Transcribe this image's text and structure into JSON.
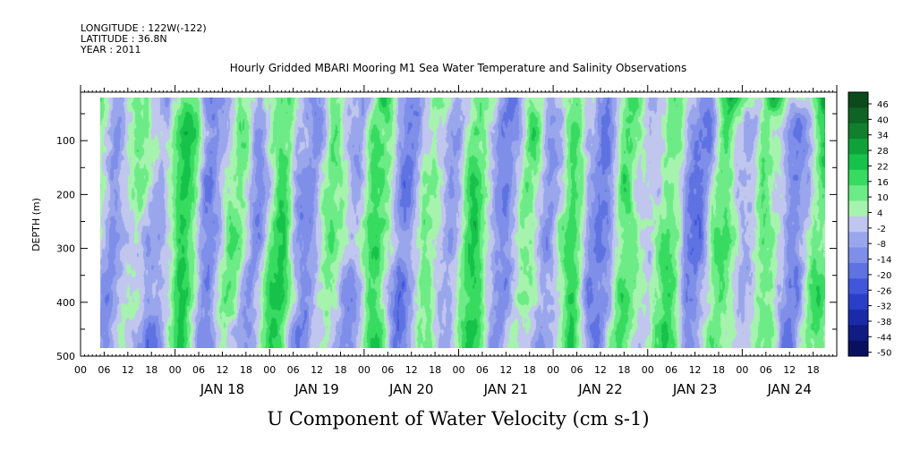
{
  "header": {
    "longitude": "LONGITUDE : 122W(-122)",
    "latitude": "LATITUDE : 36.8N",
    "year": "YEAR : 2011"
  },
  "chart_data": {
    "type": "heatmap",
    "title": "Hourly Gridded MBARI Mooring M1 Sea Water Temperature and Salinity Observations",
    "xlabel": "U Component of Water Velocity (cm s-1)",
    "ylabel": "DEPTH (m)",
    "y_axis": {
      "range": [
        500,
        10
      ],
      "inverted": true,
      "ticks": [
        100,
        200,
        300,
        400,
        500
      ],
      "data_extent": [
        20,
        485
      ]
    },
    "x_axis": {
      "unit": "hour",
      "range_start": "2011-01-17 00:00",
      "range_end": "2011-01-24 23:00",
      "data_start": "2011-01-17 05:00",
      "data_end": "2011-01-24 21:00",
      "hour_tick_labels": [
        "00",
        "06",
        "12",
        "18"
      ],
      "date_labels": [
        "JAN 18",
        "JAN 19",
        "JAN 20",
        "JAN 21",
        "JAN 22",
        "JAN 23",
        "JAN 24"
      ]
    },
    "colorbar": {
      "labels": [
        "46",
        "40",
        "34",
        "28",
        "22",
        "16",
        "10",
        "4",
        "-2",
        "-8",
        "-14",
        "-20",
        "-26",
        "-32",
        "-38",
        "-44",
        "-50"
      ],
      "bands": [
        {
          "from": 43,
          "to": 50,
          "color": "#0b4a1a"
        },
        {
          "from": 37,
          "to": 43,
          "color": "#0e6424"
        },
        {
          "from": 31,
          "to": 37,
          "color": "#10802d"
        },
        {
          "from": 25,
          "to": 31,
          "color": "#0fa23a"
        },
        {
          "from": 19,
          "to": 25,
          "color": "#16c24a"
        },
        {
          "from": 13,
          "to": 19,
          "color": "#37db5f"
        },
        {
          "from": 7,
          "to": 13,
          "color": "#6ceb86"
        },
        {
          "from": 1,
          "to": 7,
          "color": "#a6f3ae"
        },
        {
          "from": -5,
          "to": 1,
          "color": "#c0c6ee"
        },
        {
          "from": -11,
          "to": -5,
          "color": "#9aa6ec"
        },
        {
          "from": -17,
          "to": -11,
          "color": "#7f8ee8"
        },
        {
          "from": -23,
          "to": -17,
          "color": "#5f72e2"
        },
        {
          "from": -29,
          "to": -23,
          "color": "#4256dc"
        },
        {
          "from": -35,
          "to": -29,
          "color": "#2a3fc8"
        },
        {
          "from": -41,
          "to": -35,
          "color": "#1b2aa8"
        },
        {
          "from": -47,
          "to": -41,
          "color": "#101c82"
        },
        {
          "from": -53,
          "to": -47,
          "color": "#0a1060"
        }
      ]
    }
  }
}
